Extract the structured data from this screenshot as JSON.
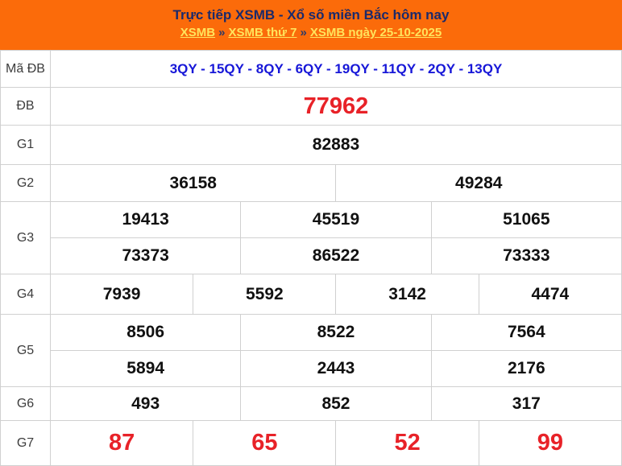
{
  "header": {
    "title": "Trực tiếp XSMB - Xổ số miền Bắc hôm nay",
    "breadcrumb": {
      "separator": "»",
      "items": [
        {
          "label": "XSMB"
        },
        {
          "label": "XSMB thứ 7"
        },
        {
          "label": "XSMB ngày 25-10-2025"
        }
      ]
    }
  },
  "table": {
    "labels": {
      "ma_db": "Mã ĐB",
      "db": "ĐB",
      "g1": "G1",
      "g2": "G2",
      "g3": "G3",
      "g4": "G4",
      "g5": "G5",
      "g6": "G6",
      "g7": "G7"
    },
    "ma_db_codes": "3QY - 15QY - 8QY - 6QY - 19QY - 11QY - 2QY - 13QY",
    "db": "77962",
    "g1": "82883",
    "g2": [
      "36158",
      "49284"
    ],
    "g3": [
      [
        "19413",
        "45519",
        "51065"
      ],
      [
        "73373",
        "86522",
        "73333"
      ]
    ],
    "g4": [
      "7939",
      "5592",
      "3142",
      "4474"
    ],
    "g5": [
      [
        "8506",
        "8522",
        "7564"
      ],
      [
        "5894",
        "2443",
        "2176"
      ]
    ],
    "g6": [
      "493",
      "852",
      "317"
    ],
    "g7": [
      "87",
      "65",
      "52",
      "99"
    ]
  },
  "colors": {
    "header_bg": "#fb6b0a",
    "title_color": "#1b2a6b",
    "link_color": "#ffe45c",
    "separator_color": "#2e3a66",
    "code_blue": "#1717d8",
    "highlight_red": "#e82228",
    "number_color": "#111111",
    "border_color": "#d0d0d0",
    "label_color": "#3c3c3c"
  }
}
